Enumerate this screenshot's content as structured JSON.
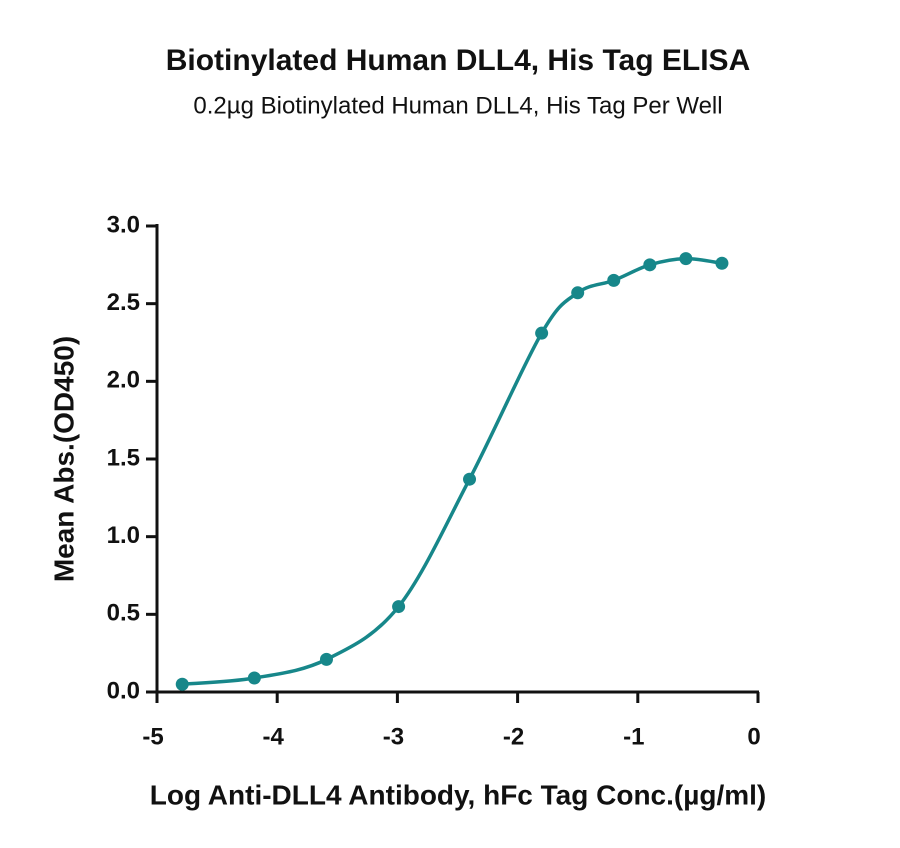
{
  "chart_data": {
    "type": "scatter",
    "title": "Biotinylated Human DLL4, His Tag ELISA",
    "subtitle": "0.2µg Biotinylated Human DLL4, His Tag Per Well",
    "x_label": "Log Anti-DLL4 Antibody, hFc Tag Conc.(µg/ml)",
    "y_label": "Mean Abs.(OD450)",
    "color": "#17878a",
    "x": [
      -4.79,
      -4.19,
      -3.59,
      -2.99,
      -2.4,
      -1.8,
      -1.5,
      -1.2,
      -0.9,
      -0.6,
      -0.3
    ],
    "values": [
      0.05,
      0.09,
      0.21,
      0.55,
      1.37,
      2.31,
      2.57,
      2.65,
      2.75,
      2.79,
      2.76
    ],
    "xlim": [
      -5,
      0
    ],
    "xticks": [
      -5,
      -4,
      -3,
      -2,
      -1,
      0
    ],
    "ylim": [
      0,
      3
    ],
    "yticks": [
      {
        "value": 0,
        "label": "0.0"
      },
      {
        "value": 0.5,
        "label": "0.5"
      },
      {
        "value": 1,
        "label": "1.0"
      },
      {
        "value": 1.5,
        "label": "1.5"
      },
      {
        "value": 2,
        "label": "2.0"
      },
      {
        "value": 2.5,
        "label": "2.5"
      },
      {
        "value": 3,
        "label": "3.0"
      }
    ]
  }
}
